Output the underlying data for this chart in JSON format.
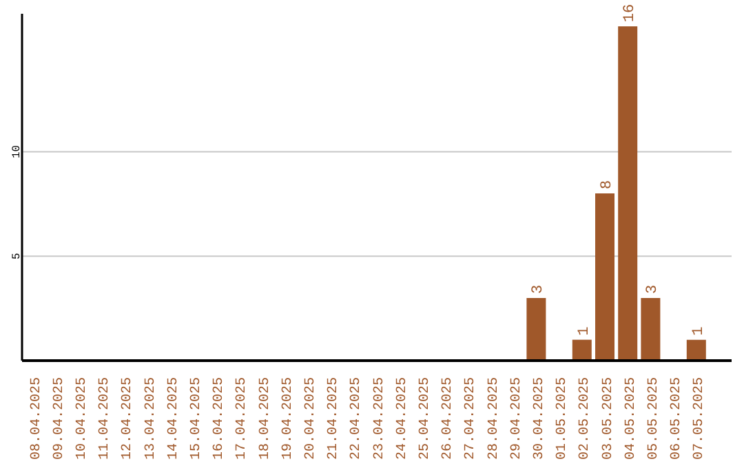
{
  "chart_data": {
    "type": "bar",
    "categories": [
      "08.04.2025",
      "09.04.2025",
      "10.04.2025",
      "11.04.2025",
      "12.04.2025",
      "13.04.2025",
      "14.04.2025",
      "15.04.2025",
      "16.04.2025",
      "17.04.2025",
      "18.04.2025",
      "19.04.2025",
      "20.04.2025",
      "21.04.2025",
      "22.04.2025",
      "23.04.2025",
      "24.04.2025",
      "25.04.2025",
      "26.04.2025",
      "27.04.2025",
      "28.04.2025",
      "29.04.2025",
      "30.04.2025",
      "01.05.2025",
      "02.05.2025",
      "03.05.2025",
      "04.05.2025",
      "05.05.2025",
      "06.05.2025",
      "07.05.2025"
    ],
    "values": [
      0,
      0,
      0,
      0,
      0,
      0,
      0,
      0,
      0,
      0,
      0,
      0,
      0,
      0,
      0,
      0,
      0,
      0,
      0,
      0,
      0,
      0,
      3,
      0,
      1,
      8,
      16,
      3,
      0,
      1
    ],
    "value_labels": [
      null,
      null,
      null,
      null,
      null,
      null,
      null,
      null,
      null,
      null,
      null,
      null,
      null,
      null,
      null,
      null,
      null,
      null,
      null,
      null,
      null,
      null,
      "3",
      null,
      "1",
      "8",
      "16",
      "3",
      null,
      "1"
    ],
    "color": "#a0582a",
    "ylim": [
      0,
      16.6
    ],
    "yticks": [
      5,
      10
    ],
    "grid": "y"
  }
}
